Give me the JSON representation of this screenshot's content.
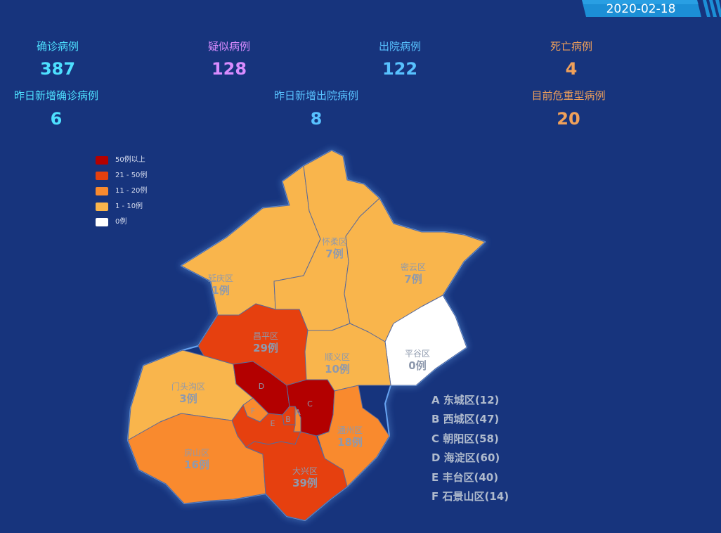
{
  "date": "2020-02-18",
  "stats": {
    "confirmed": {
      "label": "确诊病例",
      "value": "387",
      "color": "#4ee0ff"
    },
    "suspected": {
      "label": "疑似病例",
      "value": "128",
      "color": "#d98cff"
    },
    "discharged": {
      "label": "出院病例",
      "value": "122",
      "color": "#58c2ff"
    },
    "deaths": {
      "label": "死亡病例",
      "value": "4",
      "color": "#f0a05a"
    },
    "new_confirmed": {
      "label": "昨日新增确诊病例",
      "value": "6",
      "color": "#4ee0ff"
    },
    "new_discharged": {
      "label": "昨日新增出院病例",
      "value": "8",
      "color": "#58c2ff"
    },
    "critical": {
      "label": "目前危重型病例",
      "value": "20",
      "color": "#f0a05a"
    }
  },
  "legend": [
    {
      "label": "50例以上",
      "color": "#b30000"
    },
    {
      "label": "21 - 50例",
      "color": "#e6400f"
    },
    {
      "label": "11 - 20例",
      "color": "#f98a2e"
    },
    {
      "label": "1 - 10例",
      "color": "#f9b54c"
    },
    {
      "label": "0例",
      "color": "#ffffff"
    }
  ],
  "districts": {
    "yanqing": {
      "name": "延庆区",
      "count": "1例",
      "cases": 1
    },
    "huairou": {
      "name": "怀柔区",
      "count": "7例",
      "cases": 7
    },
    "miyun": {
      "name": "密云区",
      "count": "7例",
      "cases": 7
    },
    "pinggu": {
      "name": "平谷区",
      "count": "0例",
      "cases": 0
    },
    "changping": {
      "name": "昌平区",
      "count": "29例",
      "cases": 29
    },
    "shunyi": {
      "name": "顺义区",
      "count": "10例",
      "cases": 10
    },
    "mentougou": {
      "name": "门头沟区",
      "count": "3例",
      "cases": 3
    },
    "tongzhou": {
      "name": "通州区",
      "count": "18例",
      "cases": 18
    },
    "fangshan": {
      "name": "房山区",
      "count": "16例",
      "cases": 16
    },
    "daxing": {
      "name": "大兴区",
      "count": "39例",
      "cases": 39
    },
    "haidian": {
      "code": "D",
      "cases": 60
    },
    "chaoyang": {
      "code": "C",
      "cases": 58
    },
    "fengtai": {
      "code": "E",
      "cases": 40
    },
    "shijingshan": {
      "code": "F",
      "cases": 14
    },
    "xicheng": {
      "code": "B",
      "cases": 47
    },
    "dongcheng": {
      "code": "A",
      "cases": 12
    }
  },
  "district_list": [
    "A 东城区(12)",
    "B 西城区(47)",
    "C 朝阳区(58)",
    "D 海淀区(60)",
    "E 丰台区(40)",
    "F 石景山区(14)"
  ]
}
